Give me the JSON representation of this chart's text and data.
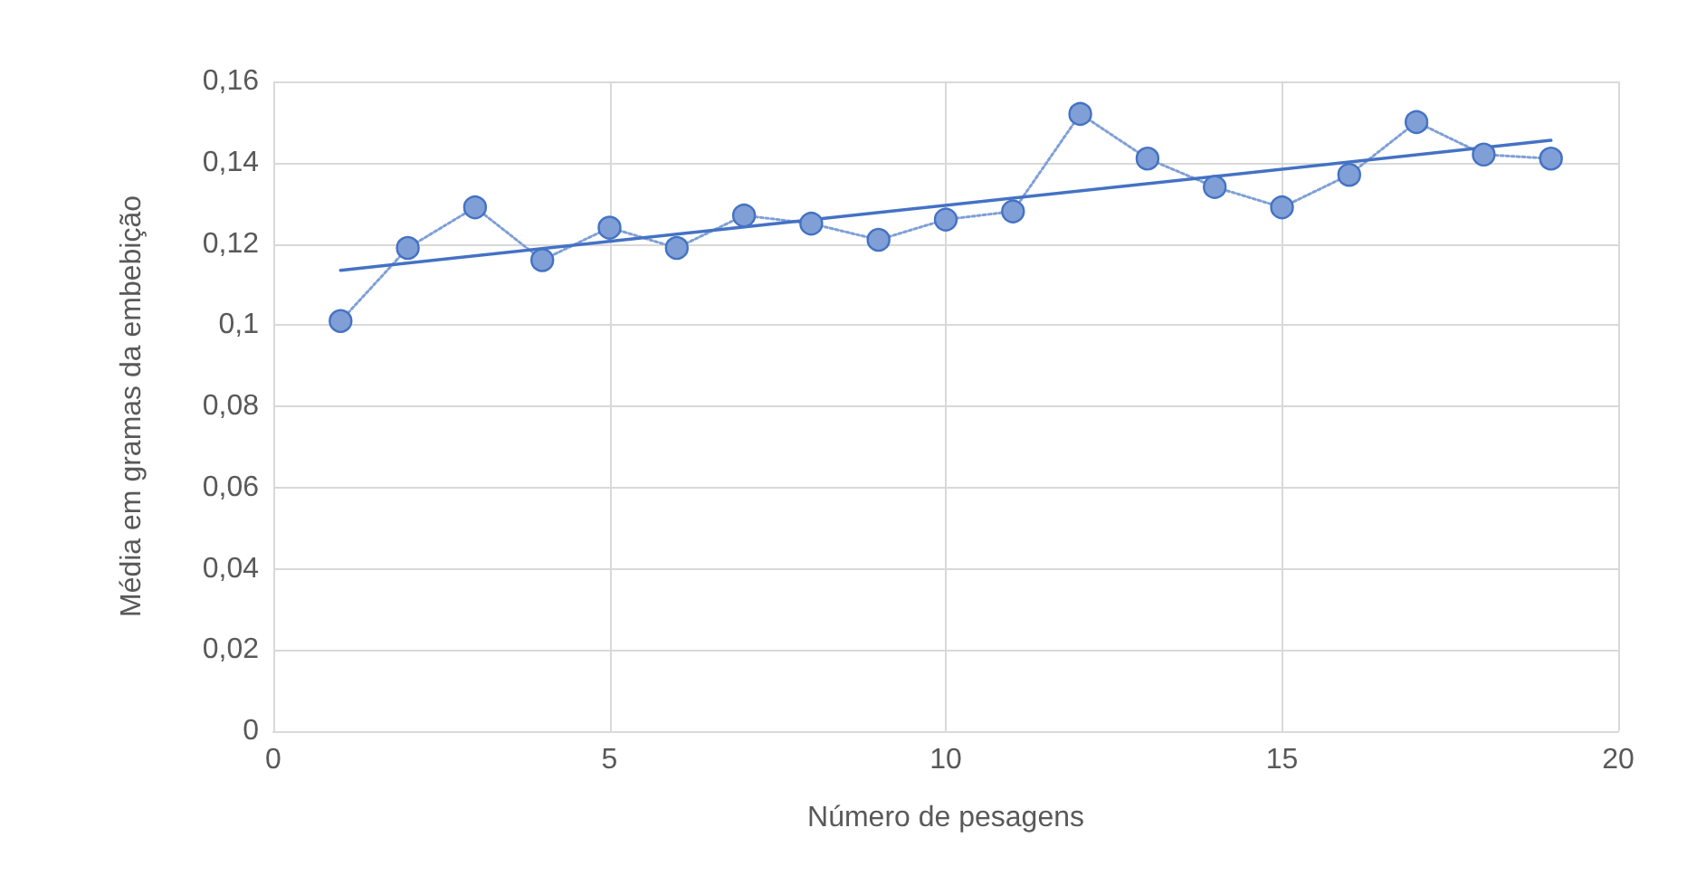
{
  "chart_data": {
    "type": "line",
    "xlabel": "Número de pesagens",
    "ylabel": "Média em gramas da embebição",
    "xlim": [
      0,
      20
    ],
    "xticks": [
      0,
      5,
      10,
      15,
      20
    ],
    "ylim": [
      0,
      0.16
    ],
    "yticks": [
      0,
      {
        "value": 0.02,
        "label": "0,02"
      },
      {
        "value": 0.04,
        "label": "0,04"
      },
      {
        "value": 0.06,
        "label": "0,06"
      },
      {
        "value": 0.08,
        "label": "0,08"
      },
      {
        "value": 0.1,
        "label": "0,1"
      },
      {
        "value": 0.12,
        "label": "0,12"
      },
      {
        "value": 0.14,
        "label": "0,14"
      },
      {
        "value": 0.16,
        "label": "0,16"
      }
    ],
    "grid": true,
    "series": [
      {
        "color": "#7f9fd6",
        "marker": "circle",
        "line_style": "dotted",
        "x": [
          1,
          2,
          3,
          4,
          5,
          6,
          7,
          8,
          9,
          10,
          11,
          12,
          13,
          14,
          15,
          16,
          17,
          18,
          19
        ],
        "values": [
          0.101,
          0.119,
          0.129,
          0.116,
          0.124,
          0.119,
          0.127,
          0.125,
          0.121,
          0.126,
          0.128,
          0.152,
          0.141,
          0.134,
          0.129,
          0.137,
          0.15,
          0.142,
          0.141
        ]
      },
      {
        "color": "#4472c4",
        "marker": "none",
        "line_style": "solid",
        "x": [
          1,
          19
        ],
        "values": [
          0.1135,
          0.1455
        ]
      }
    ]
  }
}
